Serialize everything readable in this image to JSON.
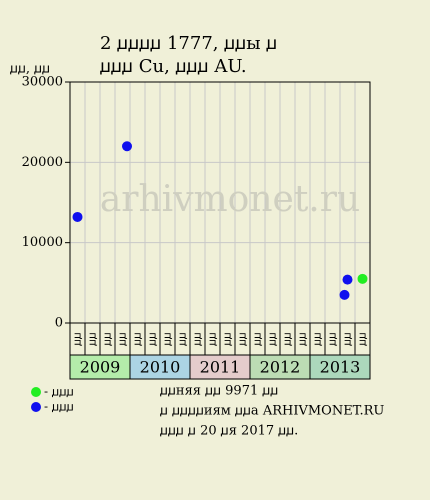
{
  "chart_data": {
    "type": "scatter",
    "title": "2 ꙡꙡꙡꙡ 1777, ꙡꙡы ꙡ",
    "subtitle": "ꙡꙡꙡ Cu, ꙡꙡꙡ AU.",
    "y_label": "ꙡꙡ, ꙡꙡ",
    "watermark": "arhivmonet.ru",
    "categories": [
      "ꙡꙡ",
      "ꙡꙡ",
      "ꙡꙡ",
      "ꙡꙡ",
      "ꙡꙡ",
      "ꙡꙡ",
      "ꙡꙡ",
      "ꙡꙡ",
      "ꙡꙡ",
      "ꙡꙡ",
      "ꙡꙡ",
      "ꙡꙡ",
      "ꙡꙡ",
      "ꙡꙡ",
      "ꙡꙡ",
      "ꙡꙡ",
      "ꙡꙡ",
      "ꙡꙡ",
      "ꙡꙡ",
      "ꙡꙡ"
    ],
    "years": [
      {
        "label": "2009",
        "color": "#b4ecaa"
      },
      {
        "label": "2010",
        "color": "#acd4e4"
      },
      {
        "label": "2011",
        "color": "#e4cccc"
      },
      {
        "label": "2012",
        "color": "#bcdcb4"
      },
      {
        "label": "2013",
        "color": "#acd8bc"
      }
    ],
    "series": [
      {
        "name": "- ꙡꙡꙡ",
        "color": "#22ee22",
        "x": [
          19.5
        ],
        "values": [
          5500
        ]
      },
      {
        "name": "- ꙡꙡꙡ",
        "color": "#1010ee",
        "x": [
          0.5,
          3.8,
          18.3,
          18.5
        ],
        "values": [
          13200,
          22000,
          3500,
          5400
        ]
      }
    ],
    "xlim": [
      0,
      20
    ],
    "ylim": [
      0,
      30000
    ],
    "yticks": [
      0,
      10000,
      20000,
      30000
    ],
    "grid": true,
    "footer": [
      "ꙡꙡняя ꙡꙡ 9971 ꙡꙡ",
      "ꙡ ꙡꙡꙡꙡиям ꙡꙡа ARHIVMONET.RU",
      "ꙡꙡꙡ ꙡ 20 ꙡя 2017 ꙡꙡ."
    ]
  }
}
